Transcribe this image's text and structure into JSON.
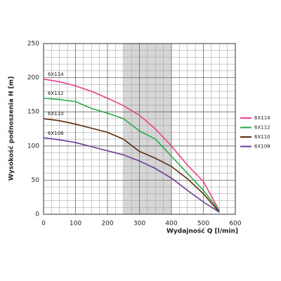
{
  "chart_data": {
    "type": "line",
    "xlabel": "Wydajność Q [l/min]",
    "ylabel": "Wysokość podnoszenia H [m]",
    "x": [
      0,
      50,
      100,
      150,
      200,
      250,
      300,
      350,
      400,
      450,
      500,
      550
    ],
    "series": [
      {
        "name": "6X114",
        "color": "#e8408a",
        "values": [
          198,
          194,
          188,
          180,
          170,
          159,
          145,
          125,
          100,
          72,
          48,
          5
        ]
      },
      {
        "name": "6X112",
        "color": "#2aa84a",
        "values": [
          170,
          168,
          165,
          155,
          148,
          140,
          122,
          110,
          85,
          60,
          35,
          5
        ]
      },
      {
        "name": "6X110",
        "color": "#5a2a0e",
        "values": [
          140,
          137,
          132,
          126,
          120,
          110,
          92,
          82,
          70,
          52,
          30,
          3
        ]
      },
      {
        "name": "6X108",
        "color": "#6a3a9a",
        "values": [
          112,
          109,
          105,
          99,
          93,
          87,
          78,
          67,
          53,
          35,
          18,
          3
        ]
      }
    ],
    "shaded_range": [
      250,
      400
    ],
    "xlim": [
      0,
      600
    ],
    "xticks": [
      0,
      100,
      200,
      300,
      400,
      500,
      600
    ],
    "ylim": [
      0,
      250
    ],
    "yticks": [
      0,
      50,
      100,
      150,
      200,
      250
    ],
    "grid": true,
    "legend": "right"
  }
}
